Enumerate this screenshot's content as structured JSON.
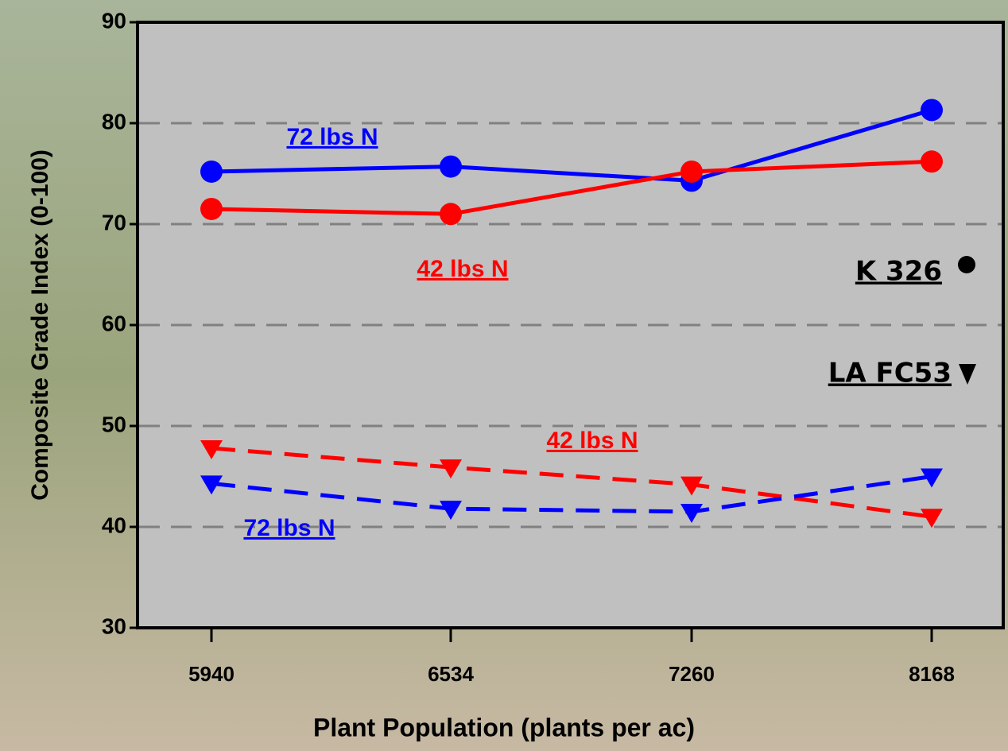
{
  "chart_data": {
    "type": "line",
    "xlabel": "Plant Population (plants per ac)",
    "ylabel": "Composite Grade Index (0-100)",
    "categories": [
      "5940",
      "6534",
      "7260",
      "8168"
    ],
    "ylim": [
      30,
      90
    ],
    "yticks": [
      30,
      40,
      50,
      60,
      70,
      80,
      90
    ],
    "grid": true,
    "series": [
      {
        "name": "72 lbs N",
        "color": "#0000ff",
        "line_style": "solid",
        "marker": "circle",
        "values": [
          75.2,
          75.7,
          74.3,
          81.3
        ]
      },
      {
        "name": "42 lbs N",
        "color": "#ff0000",
        "line_style": "solid",
        "marker": "circle",
        "values": [
          71.5,
          71.0,
          75.2,
          76.2
        ]
      },
      {
        "name": "42 lbs N",
        "color": "#ff0000",
        "line_style": "dashed",
        "marker": "triangle",
        "values": [
          47.8,
          45.9,
          44.2,
          41.0
        ]
      },
      {
        "name": "72 lbs N",
        "color": "#0000ff",
        "line_style": "dashed",
        "marker": "triangle",
        "values": [
          44.3,
          41.8,
          41.5,
          45.0
        ]
      }
    ],
    "annotations": [
      "K 326",
      "LA FC53"
    ]
  }
}
